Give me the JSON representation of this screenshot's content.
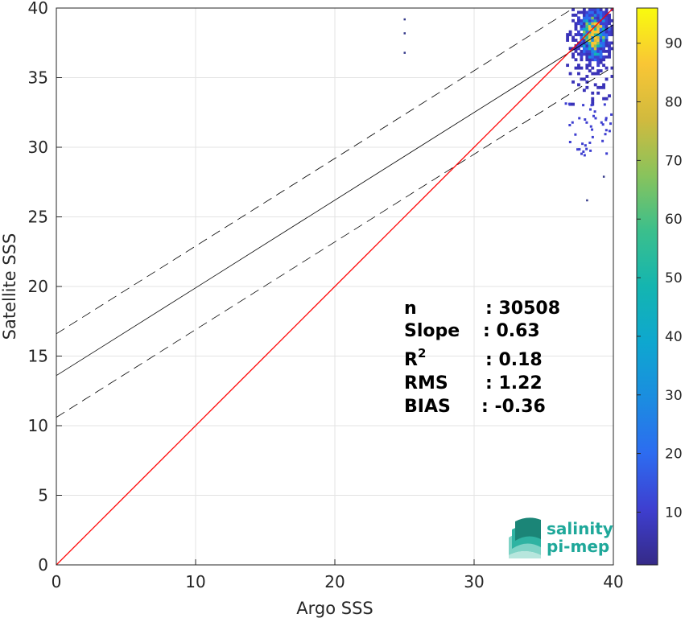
{
  "chart_data": {
    "type": "scatter",
    "subtype": "2d-density-histogram",
    "xlabel": "Argo SSS",
    "ylabel": "Satellite SSS",
    "xlim": [
      0,
      40
    ],
    "ylim": [
      0,
      40
    ],
    "x_ticks": [
      "0",
      "10",
      "20",
      "30",
      "40"
    ],
    "y_ticks": [
      "0",
      "5",
      "10",
      "15",
      "20",
      "25",
      "30",
      "35",
      "40"
    ],
    "grid": true,
    "colormap": "parula",
    "colorbar": {
      "range": [
        1,
        96
      ],
      "ticks": [
        "10",
        "20",
        "30",
        "40",
        "50",
        "60",
        "70",
        "80",
        "90"
      ]
    },
    "regression": {
      "slope": 0.63,
      "intercept": 13.6,
      "band": 3.0
    },
    "identity_line_color": "#ff0000",
    "stats": [
      {
        "label": "n",
        "value": ": 30508"
      },
      {
        "label": "Slope",
        "value": ": 0.63"
      },
      {
        "label": "R",
        "sup": "2",
        "value": ": 0.18"
      },
      {
        "label": "RMS",
        "value": ": 1.22"
      },
      {
        "label": "BIAS",
        "value": ": -0.36"
      }
    ],
    "density_center": {
      "x": 38.5,
      "y": 38.0
    },
    "outliers": [
      [
        25.0,
        39.2
      ],
      [
        25.0,
        38.2
      ],
      [
        25.0,
        36.8
      ],
      [
        38.1,
        26.2
      ],
      [
        39.3,
        27.9
      ]
    ],
    "logo": {
      "line1": "salinity",
      "line2": "pi-mep"
    }
  }
}
